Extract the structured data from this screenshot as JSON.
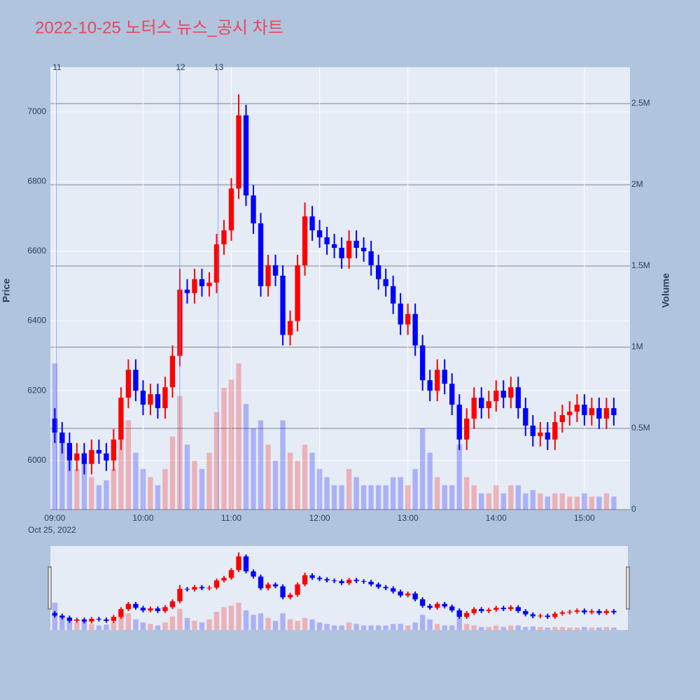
{
  "chart_data": {
    "type": "candlestick",
    "title": "2022-10-25 노터스 뉴스_공시 차트",
    "ylabel": "Price",
    "y2label": "Volume",
    "x_date_label": "Oct 25, 2022",
    "increasing_color": "#ff0000",
    "decreasing_color": "#0000ff",
    "x": [
      "2022-10-25 09:00",
      "2022-10-25 09:05",
      "2022-10-25 09:10",
      "2022-10-25 09:15",
      "2022-10-25 09:20",
      "2022-10-25 09:25",
      "2022-10-25 09:30",
      "2022-10-25 09:35",
      "2022-10-25 09:40",
      "2022-10-25 09:45",
      "2022-10-25 09:50",
      "2022-10-25 09:55",
      "2022-10-25 10:00",
      "2022-10-25 10:05",
      "2022-10-25 10:10",
      "2022-10-25 10:15",
      "2022-10-25 10:20",
      "2022-10-25 10:25",
      "2022-10-25 10:30",
      "2022-10-25 10:35",
      "2022-10-25 10:40",
      "2022-10-25 10:45",
      "2022-10-25 10:50",
      "2022-10-25 10:55",
      "2022-10-25 11:00",
      "2022-10-25 11:05",
      "2022-10-25 11:10",
      "2022-10-25 11:15",
      "2022-10-25 11:20",
      "2022-10-25 11:25",
      "2022-10-25 11:30",
      "2022-10-25 11:35",
      "2022-10-25 11:40",
      "2022-10-25 11:45",
      "2022-10-25 11:50",
      "2022-10-25 11:55",
      "2022-10-25 12:00",
      "2022-10-25 12:05",
      "2022-10-25 12:10",
      "2022-10-25 12:15",
      "2022-10-25 12:20",
      "2022-10-25 12:25",
      "2022-10-25 12:30",
      "2022-10-25 12:35",
      "2022-10-25 12:40",
      "2022-10-25 12:45",
      "2022-10-25 12:50",
      "2022-10-25 12:55",
      "2022-10-25 13:00",
      "2022-10-25 13:05",
      "2022-10-25 13:10",
      "2022-10-25 13:15",
      "2022-10-25 13:20",
      "2022-10-25 13:25",
      "2022-10-25 13:30",
      "2022-10-25 13:35",
      "2022-10-25 13:40",
      "2022-10-25 13:45",
      "2022-10-25 13:50",
      "2022-10-25 13:55",
      "2022-10-25 14:00",
      "2022-10-25 14:05",
      "2022-10-25 14:10",
      "2022-10-25 14:15",
      "2022-10-25 14:20",
      "2022-10-25 14:25",
      "2022-10-25 14:30",
      "2022-10-25 14:35",
      "2022-10-25 14:40",
      "2022-10-25 14:45",
      "2022-10-25 14:50",
      "2022-10-25 14:55",
      "2022-10-25 15:00",
      "2022-10-25 15:05",
      "2022-10-25 15:10",
      "2022-10-25 15:15",
      "2022-10-25 15:20"
    ],
    "open": [
      6120,
      6080,
      6050,
      6000,
      6020,
      5990,
      6030,
      6020,
      6000,
      6060,
      6180,
      6260,
      6200,
      6160,
      6190,
      6150,
      6210,
      6300,
      6490,
      6480,
      6520,
      6500,
      6510,
      6620,
      6660,
      6780,
      6990,
      6760,
      6680,
      6500,
      6560,
      6530,
      6360,
      6400,
      6560,
      6700,
      6660,
      6640,
      6620,
      6610,
      6580,
      6630,
      6610,
      6600,
      6560,
      6520,
      6500,
      6450,
      6390,
      6420,
      6330,
      6230,
      6200,
      6260,
      6220,
      6160,
      6060,
      6120,
      6180,
      6150,
      6170,
      6200,
      6180,
      6210,
      6150,
      6100,
      6070,
      6080,
      6060,
      6110,
      6130,
      6140,
      6160,
      6130,
      6150,
      6120,
      6150
    ],
    "high": [
      6150,
      6110,
      6080,
      6050,
      6050,
      6060,
      6060,
      6050,
      6090,
      6210,
      6290,
      6290,
      6230,
      6220,
      6220,
      6240,
      6330,
      6550,
      6520,
      6550,
      6550,
      6540,
      6650,
      6690,
      6810,
      7050,
      7020,
      6790,
      6710,
      6590,
      6590,
      6560,
      6430,
      6590,
      6740,
      6730,
      6690,
      6670,
      6650,
      6640,
      6660,
      6660,
      6640,
      6630,
      6590,
      6550,
      6530,
      6480,
      6450,
      6450,
      6360,
      6260,
      6290,
      6290,
      6250,
      6190,
      6150,
      6210,
      6210,
      6200,
      6230,
      6230,
      6240,
      6240,
      6180,
      6130,
      6110,
      6110,
      6140,
      6160,
      6170,
      6190,
      6190,
      6180,
      6180,
      6180,
      6180
    ],
    "low": [
      6050,
      6020,
      5970,
      5970,
      5960,
      5960,
      5990,
      5970,
      5970,
      6030,
      6150,
      6170,
      6130,
      6130,
      6120,
      6120,
      6180,
      6270,
      6450,
      6450,
      6470,
      6470,
      6480,
      6590,
      6630,
      6750,
      6730,
      6650,
      6470,
      6470,
      6500,
      6330,
      6330,
      6370,
      6530,
      6630,
      6610,
      6590,
      6580,
      6550,
      6550,
      6580,
      6570,
      6530,
      6490,
      6470,
      6420,
      6360,
      6360,
      6300,
      6200,
      6170,
      6170,
      6190,
      6130,
      6030,
      6030,
      6090,
      6120,
      6120,
      6140,
      6150,
      6150,
      6120,
      6070,
      6040,
      6040,
      6030,
      6030,
      6080,
      6100,
      6110,
      6100,
      6100,
      6090,
      6090,
      6100
    ],
    "close": [
      6080,
      6050,
      6000,
      6020,
      5990,
      6030,
      6020,
      6000,
      6060,
      6180,
      6260,
      6200,
      6160,
      6190,
      6150,
      6210,
      6300,
      6490,
      6480,
      6520,
      6500,
      6510,
      6620,
      6660,
      6780,
      6990,
      6760,
      6680,
      6500,
      6560,
      6530,
      6360,
      6400,
      6560,
      6700,
      6660,
      6640,
      6620,
      6610,
      6580,
      6630,
      6610,
      6600,
      6560,
      6520,
      6500,
      6450,
      6390,
      6420,
      6330,
      6230,
      6200,
      6260,
      6220,
      6160,
      6060,
      6120,
      6180,
      6150,
      6170,
      6200,
      6180,
      6210,
      6150,
      6100,
      6070,
      6080,
      6060,
      6110,
      6130,
      6140,
      6160,
      6130,
      6150,
      6120,
      6150,
      6130
    ],
    "volume": [
      900000,
      450000,
      300000,
      250000,
      350000,
      200000,
      150000,
      180000,
      250000,
      600000,
      550000,
      350000,
      250000,
      200000,
      150000,
      250000,
      450000,
      700000,
      400000,
      300000,
      250000,
      350000,
      600000,
      750000,
      800000,
      900000,
      650000,
      500000,
      550000,
      400000,
      300000,
      550000,
      350000,
      300000,
      400000,
      350000,
      250000,
      200000,
      150000,
      150000,
      250000,
      200000,
      150000,
      150000,
      150000,
      150000,
      200000,
      200000,
      150000,
      250000,
      500000,
      350000,
      200000,
      150000,
      150000,
      400000,
      200000,
      150000,
      100000,
      100000,
      150000,
      100000,
      150000,
      150000,
      100000,
      120000,
      100000,
      80000,
      100000,
      100000,
      80000,
      80000,
      100000,
      80000,
      80000,
      100000,
      80000
    ],
    "xlim": [
      "2022-10-25 08:57",
      "2022-10-25 15:31"
    ],
    "xticks": [
      {
        "value": "2022-10-25 09:00",
        "label": "09:00"
      },
      {
        "value": "2022-10-25 10:00",
        "label": "10:00"
      },
      {
        "value": "2022-10-25 11:00",
        "label": "11:00"
      },
      {
        "value": "2022-10-25 12:00",
        "label": "12:00"
      },
      {
        "value": "2022-10-25 13:00",
        "label": "13:00"
      },
      {
        "value": "2022-10-25 14:00",
        "label": "14:00"
      },
      {
        "value": "2022-10-25 15:00",
        "label": "15:00"
      }
    ],
    "ylim": [
      5859,
      7128
    ],
    "yticks": [
      6000,
      6200,
      6400,
      6600,
      6800,
      7000
    ],
    "y2lim": [
      0,
      2724000
    ],
    "y2ticks": [
      0,
      {
        "value": 500000,
        "label": "0.5M"
      },
      {
        "value": 1000000,
        "label": "1M"
      },
      {
        "value": 1500000,
        "label": "1.5M"
      },
      {
        "value": 2000000,
        "label": "2M"
      },
      {
        "value": 2500000,
        "label": "2.5M"
      }
    ],
    "annotations": [
      {
        "x": "2022-10-25 09:01",
        "text": "11"
      },
      {
        "x": "2022-10-25 10:25",
        "text": "12"
      },
      {
        "x": "2022-10-25 10:51",
        "text": "13"
      }
    ],
    "grid": true
  }
}
